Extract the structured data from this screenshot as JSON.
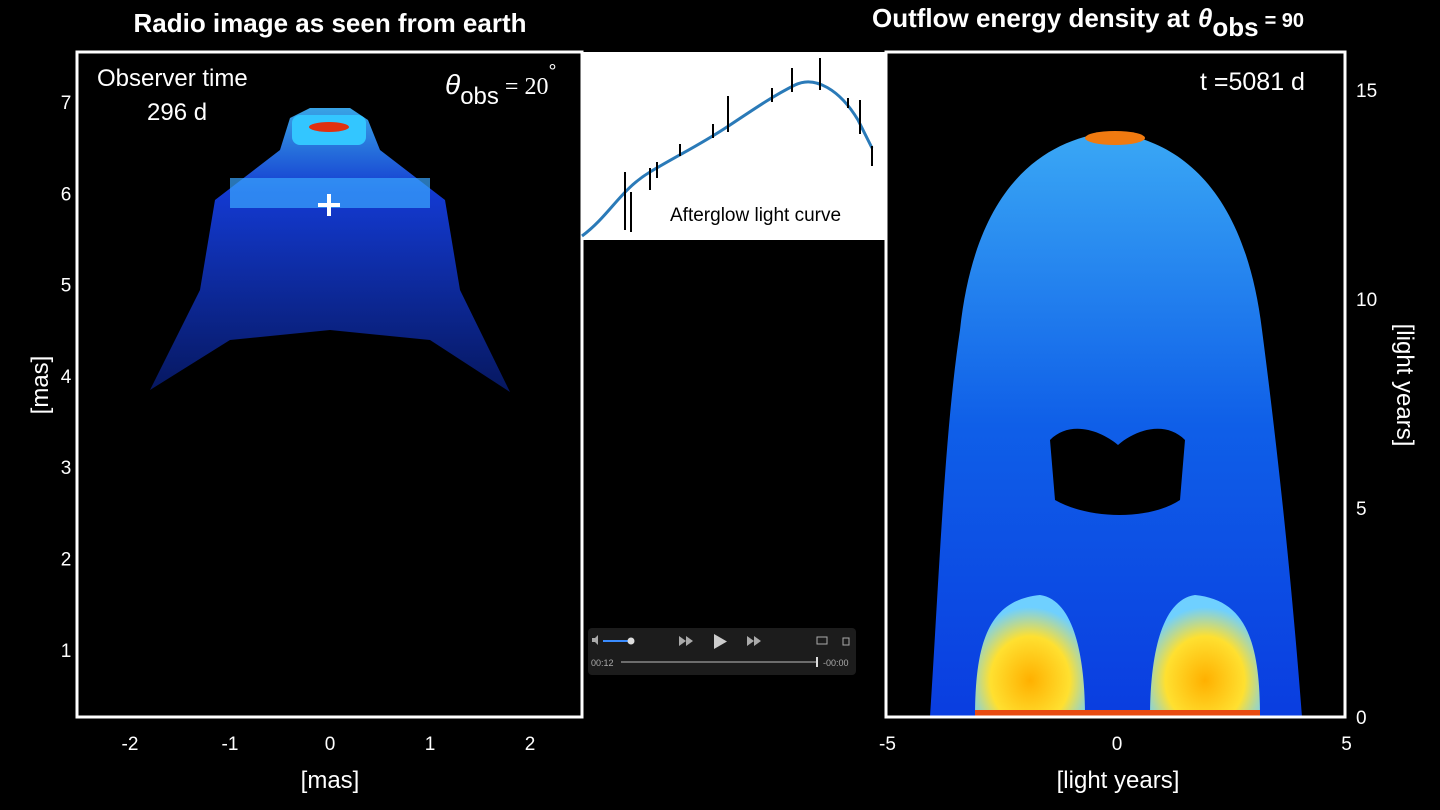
{
  "left_panel": {
    "title": "Radio image as seen from earth",
    "observer_label": "Observer time",
    "observer_time": "296 d",
    "angle": {
      "symbol": "θ",
      "subscript": "obs",
      "value": "= 20",
      "unit": "°"
    },
    "xticks": [
      -2,
      -1,
      0,
      1,
      2
    ],
    "yticks": [
      1,
      2,
      3,
      4,
      5,
      6,
      7
    ],
    "xlabel": "[mas]",
    "ylabel": "[mas]"
  },
  "inset": {
    "label": "Afterglow light curve"
  },
  "right_panel": {
    "title": {
      "text": "Outflow energy density at",
      "symbol": "θ",
      "subscript": "obs",
      "value": "= 90"
    },
    "time": "t =5081 d",
    "xticks": [
      -5,
      0,
      5
    ],
    "yticks": [
      0,
      5,
      10,
      15
    ],
    "xlabel": "[light years]",
    "ylabel": "[light years]"
  },
  "player": {
    "elapsed": "00:12",
    "remaining": "-00:00"
  }
}
